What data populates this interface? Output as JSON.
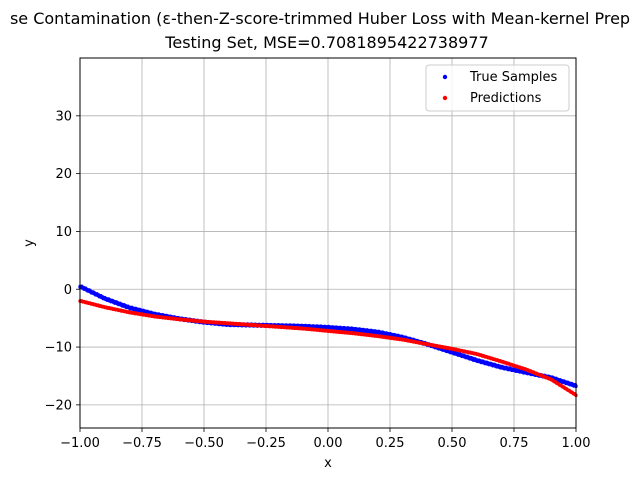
{
  "chart_data": {
    "type": "scatter",
    "title_line1": "se Contamination (ε-then-Z-score-trimmed Huber Loss with Mean-kernel Prep",
    "title_line2": "Testing Set, MSE=0.7081895422738977",
    "xlabel": "x",
    "ylabel": "y",
    "xlim": [
      -1.0,
      1.0
    ],
    "ylim": [
      -24,
      40
    ],
    "xticks": [
      -1.0,
      -0.75,
      -0.5,
      -0.25,
      0.0,
      0.25,
      0.5,
      0.75,
      1.0
    ],
    "xtick_labels": [
      "−1.00",
      "−0.75",
      "−0.50",
      "−0.25",
      "0.00",
      "0.25",
      "0.50",
      "0.75",
      "1.00"
    ],
    "yticks": [
      -20,
      -10,
      0,
      10,
      20,
      30
    ],
    "ytick_labels": [
      "−20",
      "−10",
      "0",
      "10",
      "20",
      "30"
    ],
    "grid": true,
    "legend_position": "top-right",
    "series": [
      {
        "name": "True Samples",
        "color": "#0000ff",
        "x": [
          -1.0,
          -0.9,
          -0.8,
          -0.7,
          -0.6,
          -0.5,
          -0.4,
          -0.3,
          -0.2,
          -0.1,
          0.0,
          0.1,
          0.2,
          0.3,
          0.4,
          0.5,
          0.6,
          0.7,
          0.8,
          0.9,
          1.0
        ],
        "y": [
          0.5,
          -1.6,
          -3.2,
          -4.3,
          -5.1,
          -5.7,
          -6.1,
          -6.2,
          -6.3,
          -6.4,
          -6.6,
          -6.9,
          -7.4,
          -8.3,
          -9.5,
          -10.9,
          -12.3,
          -13.5,
          -14.4,
          -15.3,
          -16.7
        ]
      },
      {
        "name": "Predictions",
        "color": "#ff0000",
        "x": [
          -1.0,
          -0.9,
          -0.8,
          -0.7,
          -0.6,
          -0.5,
          -0.4,
          -0.3,
          -0.2,
          -0.1,
          0.0,
          0.1,
          0.2,
          0.3,
          0.4,
          0.5,
          0.6,
          0.7,
          0.8,
          0.9,
          1.0
        ],
        "y": [
          -2.0,
          -3.1,
          -4.0,
          -4.7,
          -5.2,
          -5.6,
          -5.9,
          -6.2,
          -6.5,
          -6.8,
          -7.2,
          -7.6,
          -8.1,
          -8.7,
          -9.5,
          -10.3,
          -11.2,
          -12.5,
          -13.9,
          -15.6,
          -18.3
        ]
      }
    ]
  }
}
